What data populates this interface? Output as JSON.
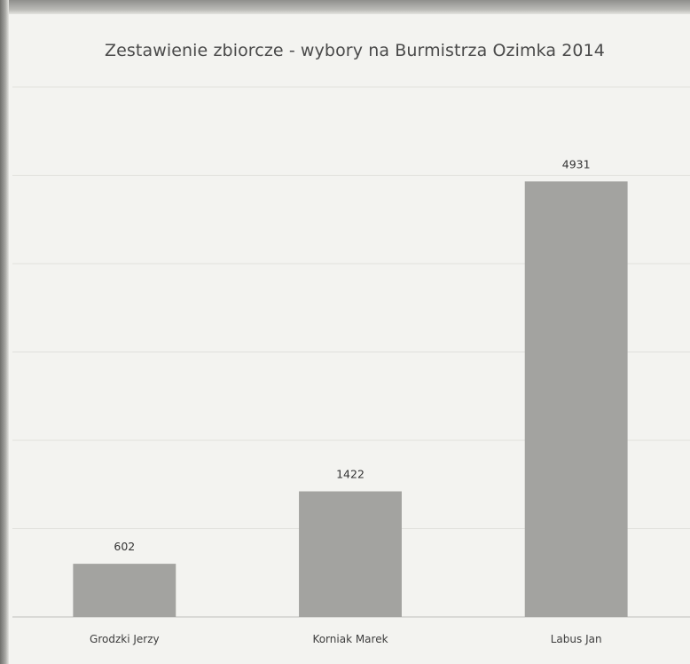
{
  "chart_data": {
    "type": "bar",
    "title": "Zestawienie zbiorcze - wybory na Burmistrza Ozimka 2014",
    "categories": [
      "Grodzki Jerzy",
      "Korniak Marek",
      "Labus Jan"
    ],
    "series": [
      {
        "values": [
          602,
          1422,
          4931
        ]
      }
    ],
    "data_labels": [
      "602",
      "1422",
      "4931"
    ],
    "ylim": [
      0,
      6000
    ],
    "grid": true,
    "legend": "none",
    "bar_color": "#a3a3a0"
  }
}
